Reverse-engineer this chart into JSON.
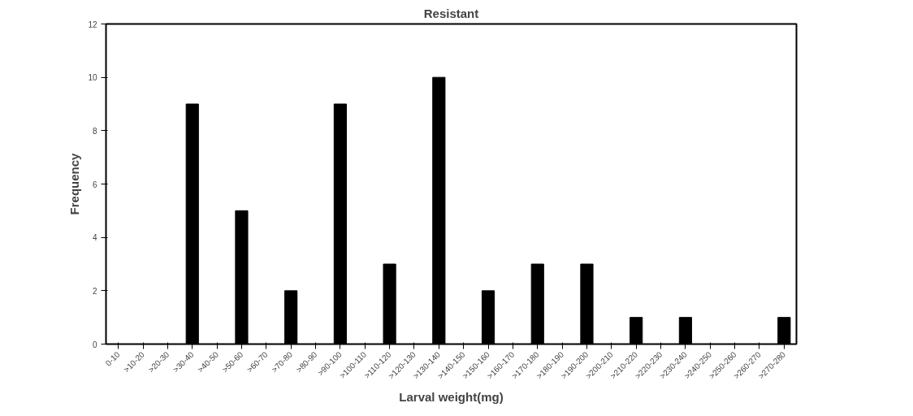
{
  "chart_data": {
    "type": "bar",
    "title": "Resistant",
    "xlabel": "Larval weight(mg)",
    "ylabel": "Frequency",
    "categories": [
      "0-10",
      ">10-20",
      ">20-30",
      ">30-40",
      ">40-50",
      ">50-60",
      ">60-70",
      ">70-80",
      ">80-90",
      ">90-100",
      ">100-110",
      ">110-120",
      ">120-130",
      ">130-140",
      ">140-150",
      ">150-160",
      ">160-170",
      ">170-180",
      ">180-190",
      ">190-200",
      ">200-210",
      ">210-220",
      ">220-230",
      ">230-240",
      ">240-250",
      ">250-260",
      ">260-270",
      ">270-280"
    ],
    "values": [
      0,
      0,
      0,
      9,
      0,
      5,
      0,
      2,
      0,
      9,
      0,
      3,
      0,
      10,
      0,
      2,
      0,
      3,
      0,
      3,
      0,
      1,
      0,
      1,
      0,
      0,
      0,
      1
    ],
    "color": "#000000",
    "ylim": [
      0,
      12
    ],
    "yticks": [
      0,
      2,
      4,
      6,
      8,
      10,
      12
    ],
    "grid": false
  }
}
